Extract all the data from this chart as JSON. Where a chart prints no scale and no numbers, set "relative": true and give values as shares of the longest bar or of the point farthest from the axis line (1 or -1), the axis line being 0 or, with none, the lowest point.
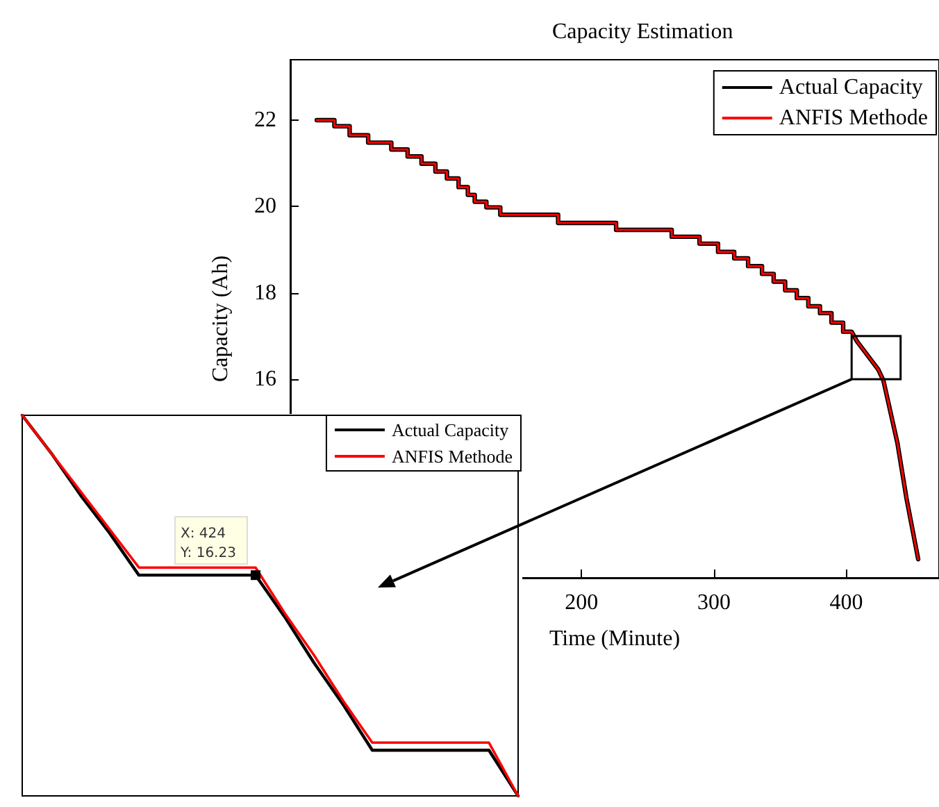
{
  "chart_data": [
    {
      "type": "line",
      "title": "Capacity Estimation",
      "xlabel": "Time (Minute)",
      "ylabel": "Capacity (Ah)",
      "x": [
        0,
        13.3,
        13.3,
        24.8,
        24.8,
        38.8,
        38.8,
        56.3,
        56.3,
        68.6,
        68.6,
        79.1,
        79.1,
        89.6,
        89.6,
        98.3,
        98.3,
        107.1,
        107.1,
        114.1,
        114.1,
        119.3,
        119.3,
        128.1,
        128.1,
        138.6,
        138.6,
        182.3,
        182.3,
        226.1,
        226.1,
        268.1,
        268.1,
        289.1,
        289.1,
        303.1,
        303.1,
        315.3,
        315.3,
        325.8,
        325.8,
        336.3,
        336.3,
        345.1,
        345.1,
        353.8,
        353.8,
        362.6,
        362.6,
        371.3,
        371.3,
        380.1,
        380.1,
        388.8,
        388.8,
        397.6,
        397.6,
        404,
        408,
        418.6,
        424,
        428,
        438.6,
        445.5,
        454.3
      ],
      "series": [
        {
          "name": "Actual Capacity",
          "color": "#000000",
          "values": [
            22,
            22,
            21.86,
            21.86,
            21.65,
            21.65,
            21.48,
            21.48,
            21.32,
            21.32,
            21.16,
            21.16,
            20.99,
            20.99,
            20.81,
            20.81,
            20.65,
            20.65,
            20.45,
            20.45,
            20.27,
            20.27,
            20.11,
            20.11,
            19.98,
            19.98,
            19.81,
            19.81,
            19.62,
            19.62,
            19.46,
            19.46,
            19.3,
            19.3,
            19.14,
            19.14,
            18.95,
            18.95,
            18.8,
            18.8,
            18.62,
            18.62,
            18.44,
            18.44,
            18.26,
            18.26,
            18.06,
            18.06,
            17.88,
            17.88,
            17.69,
            17.69,
            17.53,
            17.53,
            17.31,
            17.31,
            17.1,
            17.1,
            16.88,
            16.45,
            16.23,
            15.97,
            14.52,
            13.23,
            11.83
          ]
        },
        {
          "name": "ANFIS Methode",
          "color": "#ff0000",
          "values": [
            22,
            22,
            21.86,
            21.86,
            21.65,
            21.65,
            21.48,
            21.48,
            21.32,
            21.32,
            21.16,
            21.16,
            20.99,
            20.99,
            20.81,
            20.81,
            20.65,
            20.65,
            20.45,
            20.45,
            20.27,
            20.27,
            20.11,
            20.11,
            19.98,
            19.98,
            19.81,
            19.81,
            19.62,
            19.62,
            19.46,
            19.46,
            19.3,
            19.3,
            19.14,
            19.14,
            18.95,
            18.95,
            18.8,
            18.8,
            18.62,
            18.62,
            18.44,
            18.44,
            18.26,
            18.26,
            18.06,
            18.06,
            17.88,
            17.88,
            17.69,
            17.69,
            17.53,
            17.53,
            17.31,
            17.31,
            17.1,
            17.1,
            16.88,
            16.45,
            16.23,
            15.97,
            14.52,
            13.23,
            11.83
          ]
        }
      ],
      "xlim": [
        -20,
        470
      ],
      "xticks": [
        200,
        300,
        400
      ],
      "ylim": [
        11.4,
        23.4
      ],
      "yticks": [
        16,
        18,
        20,
        22
      ],
      "legend": "top right",
      "marker": "none",
      "line_style": "solid"
    },
    {
      "type": "line",
      "relative": true,
      "categories": [
        null,
        null,
        null,
        null,
        null,
        null,
        null,
        null,
        null,
        null,
        null,
        null,
        null,
        null,
        null,
        null,
        null,
        null
      ],
      "series": [
        {
          "name": "Actual Capacity",
          "color": "#000000",
          "values": [
            1,
            0.9,
            0.79,
            0.69,
            0.58,
            0.58,
            0.58,
            0.58,
            0.58,
            0.47,
            0.35,
            0.24,
            0.12,
            0.12,
            0.12,
            0.12,
            0.12,
            0
          ]
        },
        {
          "name": "ANFIS Methode",
          "color": "#ff0000",
          "values": [
            1,
            0.9,
            0.8,
            0.7,
            0.6,
            0.6,
            0.6,
            0.6,
            0.6,
            0.48,
            0.37,
            0.25,
            0.14,
            0.14,
            0.14,
            0.14,
            0.14,
            0
          ]
        }
      ],
      "annotations": [
        {
          "text": "X: 424\nY: 16.23",
          "y": 0.58
        }
      ],
      "legend": "top right",
      "marker": "none",
      "line_style": "solid"
    }
  ]
}
